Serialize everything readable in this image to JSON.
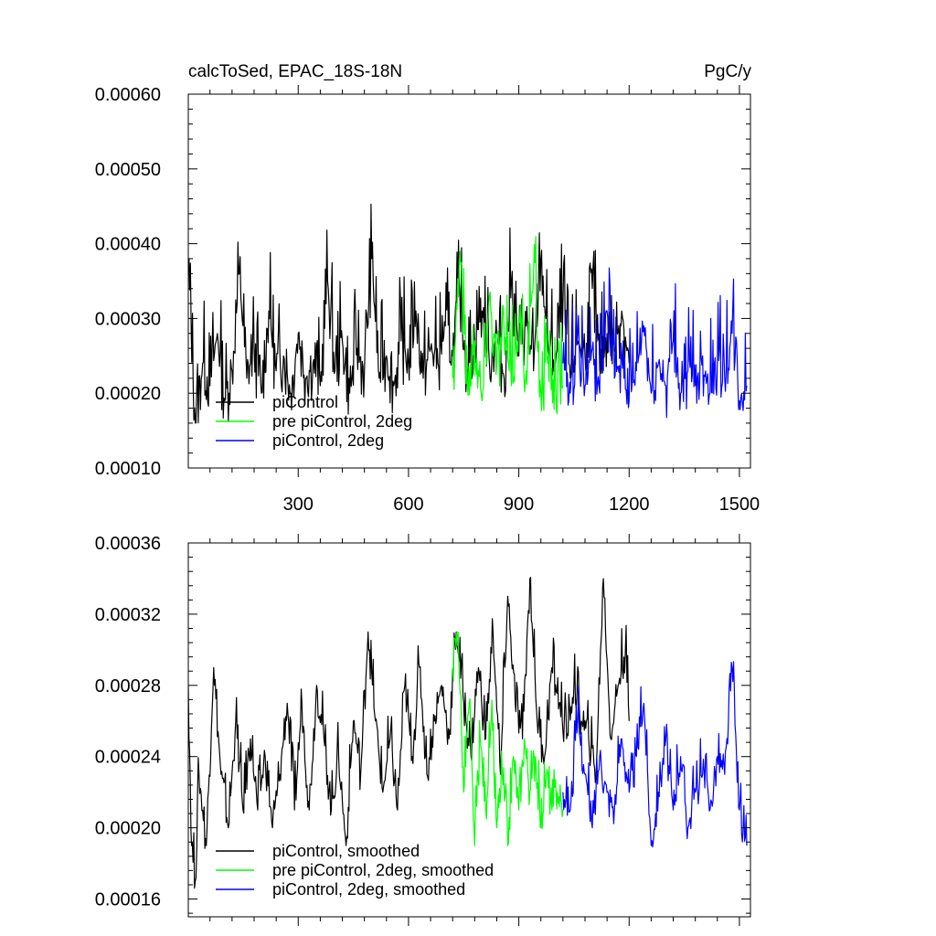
{
  "chart_data": [
    {
      "type": "line",
      "title_left": "calcToSed, EPAC_18S-18N",
      "title_right": "PgC/y",
      "xlim": [
        1,
        1530
      ],
      "ylim": [
        0.0001,
        0.0006
      ],
      "x_ticks": [
        300,
        600,
        900,
        1200,
        1500
      ],
      "x_tick_labels": [
        "300",
        "600",
        "900",
        "1200",
        "1500"
      ],
      "y_ticks": [
        0.0001,
        0.0002,
        0.0003,
        0.0004,
        0.0005,
        0.0006
      ],
      "y_tick_labels": [
        "0.00010",
        "0.00020",
        "0.00030",
        "0.00040",
        "0.00050",
        "0.00060"
      ],
      "legend_position": "bottom-left",
      "series": [
        {
          "name": "piControl",
          "color": "#000000",
          "x": [
            1,
            20,
            40,
            60,
            80,
            100,
            120,
            140,
            160,
            180,
            200,
            220,
            240,
            260,
            280,
            300,
            320,
            340,
            360,
            380,
            400,
            420,
            440,
            460,
            480,
            500,
            520,
            540,
            560,
            580,
            600,
            620,
            640,
            660,
            680,
            700,
            720,
            740,
            760,
            780,
            800,
            820,
            840,
            860,
            880,
            900,
            920,
            940,
            960,
            980,
            1000,
            1020,
            1040,
            1060,
            1080,
            1100,
            1120,
            1140,
            1160,
            1180,
            1200
          ],
          "y": [
            0.00038,
            0.00016,
            0.00024,
            0.00021,
            0.00028,
            0.00019,
            0.00023,
            0.00036,
            0.00022,
            0.00026,
            0.0002,
            0.00031,
            0.00023,
            0.00025,
            0.0002,
            0.00028,
            0.00022,
            0.00024,
            0.00021,
            0.00035,
            0.00023,
            0.00027,
            0.0002,
            0.00026,
            0.00023,
            0.00038,
            0.00022,
            0.00025,
            0.00021,
            0.00027,
            0.00024,
            0.00031,
            0.00022,
            0.00026,
            0.00024,
            0.00029,
            0.00025,
            0.00033,
            0.00023,
            0.00027,
            0.00031,
            0.00024,
            0.00028,
            0.00022,
            0.00035,
            0.00025,
            0.00029,
            0.00023,
            0.00038,
            0.00026,
            0.00024,
            0.00032,
            0.00022,
            0.00027,
            0.00025,
            0.00034,
            0.00023,
            0.00028,
            0.00026,
            0.00031,
            0.00024
          ]
        },
        {
          "name": "pre piControl, 2deg",
          "color": "#00ff00",
          "x": [
            720,
            740,
            760,
            780,
            800,
            820,
            840,
            860,
            880,
            900,
            920,
            940,
            960,
            980,
            1000,
            1020
          ],
          "y": [
            0.00022,
            0.00039,
            0.00021,
            0.00027,
            0.00019,
            0.00033,
            0.00024,
            0.00028,
            0.00021,
            0.0003,
            0.00023,
            0.00036,
            0.0002,
            0.00025,
            0.00022,
            0.00021
          ]
        },
        {
          "name": "piControl, 2deg",
          "color": "#0000ff",
          "x": [
            1020,
            1040,
            1060,
            1080,
            1100,
            1120,
            1140,
            1160,
            1180,
            1200,
            1220,
            1240,
            1260,
            1280,
            1300,
            1320,
            1340,
            1360,
            1380,
            1400,
            1420,
            1440,
            1460,
            1480,
            1500,
            1520
          ],
          "y": [
            0.00024,
            0.0002,
            0.00028,
            0.00021,
            0.00026,
            0.0002,
            0.00031,
            0.00022,
            0.00025,
            0.00019,
            0.00023,
            0.00029,
            0.0002,
            0.00024,
            0.00021,
            0.00027,
            0.0002,
            0.00023,
            0.00021,
            0.00025,
            0.0002,
            0.00024,
            0.00022,
            0.00028,
            0.00019,
            0.00021
          ]
        }
      ]
    },
    {
      "type": "line",
      "xlim": [
        1,
        1530
      ],
      "ylim": [
        0.00015,
        0.00036
      ],
      "x_ticks": [
        300,
        600,
        900,
        1200,
        1500
      ],
      "y_ticks": [
        0.00016,
        0.0002,
        0.00024,
        0.00028,
        0.00032,
        0.00036
      ],
      "y_tick_labels": [
        "0.00016",
        "0.00020",
        "0.00024",
        "0.00028",
        "0.00032",
        "0.00036"
      ],
      "legend_position": "bottom-left",
      "series": [
        {
          "name": "piControl, smoothed",
          "color": "#000000",
          "x": [
            1,
            10,
            20,
            30,
            50,
            70,
            90,
            110,
            130,
            150,
            170,
            190,
            210,
            230,
            250,
            270,
            290,
            310,
            330,
            350,
            370,
            390,
            410,
            430,
            450,
            470,
            490,
            510,
            530,
            550,
            570,
            590,
            610,
            630,
            650,
            670,
            690,
            710,
            730,
            750,
            770,
            790,
            810,
            830,
            850,
            870,
            890,
            910,
            930,
            950,
            970,
            990,
            1010,
            1030,
            1050,
            1070,
            1090,
            1110,
            1130,
            1150,
            1170,
            1190,
            1200
          ],
          "y": [
            0.00028,
            0.00019,
            0.00017,
            0.00023,
            0.00019,
            0.00029,
            0.00023,
            0.0002,
            0.00026,
            0.00021,
            0.00025,
            0.00021,
            0.00024,
            0.0002,
            0.00023,
            0.00027,
            0.00021,
            0.00027,
            0.00021,
            0.00028,
            0.00025,
            0.00021,
            0.00024,
            0.00019,
            0.00026,
            0.00023,
            0.00031,
            0.00026,
            0.00022,
            0.00025,
            0.00021,
            0.00028,
            0.00024,
            0.00029,
            0.00023,
            0.00026,
            0.00028,
            0.00025,
            0.00031,
            0.00027,
            0.00024,
            0.00029,
            0.00025,
            0.00031,
            0.00023,
            0.00033,
            0.00027,
            0.00025,
            0.00034,
            0.00026,
            0.00024,
            0.00029,
            0.00027,
            0.00025,
            0.00028,
            0.00026,
            0.00025,
            0.00023,
            0.00034,
            0.00025,
            0.00028,
            0.0003,
            0.00026
          ]
        },
        {
          "name": "pre piControl, 2deg, smoothed",
          "color": "#00ff00",
          "x": [
            720,
            735,
            750,
            765,
            780,
            795,
            810,
            825,
            840,
            855,
            870,
            885,
            900,
            915,
            930,
            945,
            960,
            975,
            990,
            1005,
            1020
          ],
          "y": [
            0.00029,
            0.00031,
            0.00022,
            0.00027,
            0.00019,
            0.00025,
            0.00021,
            0.00026,
            0.0002,
            0.00023,
            0.00019,
            0.00024,
            0.00021,
            0.00025,
            0.00022,
            0.00024,
            0.0002,
            0.00023,
            0.00021,
            0.00022,
            0.00021
          ]
        },
        {
          "name": "piControl, 2deg, smoothed",
          "color": "#0000ff",
          "x": [
            1020,
            1040,
            1060,
            1080,
            1100,
            1120,
            1140,
            1160,
            1180,
            1200,
            1220,
            1240,
            1260,
            1280,
            1300,
            1320,
            1340,
            1360,
            1380,
            1400,
            1420,
            1440,
            1460,
            1480,
            1500,
            1520
          ],
          "y": [
            0.00022,
            0.00021,
            0.00026,
            0.00023,
            0.0002,
            0.00024,
            0.00022,
            0.00021,
            0.00025,
            0.00022,
            0.00024,
            0.00027,
            0.00019,
            0.00022,
            0.00025,
            0.00021,
            0.00024,
            0.0002,
            0.00022,
            0.00023,
            0.00021,
            0.00024,
            0.00023,
            0.00029,
            0.00021,
            0.00019
          ]
        }
      ]
    }
  ]
}
